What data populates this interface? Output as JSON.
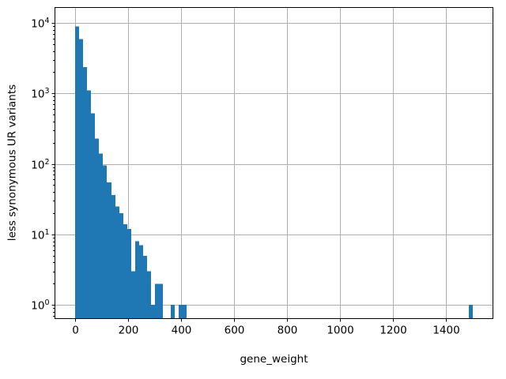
{
  "window": {
    "background": "#ffffff"
  },
  "chart_data": {
    "type": "bar",
    "subtype": "histogram",
    "title": "",
    "xlabel": "gene_weight",
    "ylabel": "less synonymous UR variants",
    "x_scale": "linear",
    "y_scale": "log",
    "xlim": [
      -78.5,
      1578.5
    ],
    "ylim": [
      0.632,
      16750
    ],
    "grid": true,
    "legend_position": "none",
    "bar_color": "#1f77b4",
    "grid_color": "#b0b0b0",
    "spine_color": "#000000",
    "text_color": "#000000",
    "x_ticks": [
      {
        "value": 0,
        "label": "0"
      },
      {
        "value": 200,
        "label": "200"
      },
      {
        "value": 400,
        "label": "400"
      },
      {
        "value": 600,
        "label": "600"
      },
      {
        "value": 800,
        "label": "800"
      },
      {
        "value": 1000,
        "label": "1000"
      },
      {
        "value": 1200,
        "label": "1200"
      },
      {
        "value": 1400,
        "label": "1400"
      }
    ],
    "y_ticks": [
      {
        "value": 1,
        "base": "10",
        "exponent": "0"
      },
      {
        "value": 10,
        "base": "10",
        "exponent": "1"
      },
      {
        "value": 100,
        "base": "10",
        "exponent": "2"
      },
      {
        "value": 1000,
        "base": "10",
        "exponent": "3"
      },
      {
        "value": 10000,
        "base": "10",
        "exponent": "4"
      }
    ],
    "y_minor_ticks_per_decade": [
      2,
      3,
      4,
      5,
      6,
      7,
      8,
      9
    ],
    "bin_width": 15,
    "bins": [
      [
        0,
        15,
        8900
      ],
      [
        15,
        30,
        5900
      ],
      [
        30,
        45,
        2360
      ],
      [
        45,
        60,
        1100
      ],
      [
        60,
        75,
        520
      ],
      [
        75,
        90,
        230
      ],
      [
        90,
        105,
        140
      ],
      [
        105,
        120,
        95
      ],
      [
        120,
        135,
        55
      ],
      [
        135,
        150,
        36
      ],
      [
        150,
        165,
        25
      ],
      [
        165,
        180,
        20
      ],
      [
        180,
        195,
        14
      ],
      [
        195,
        210,
        12
      ],
      [
        210,
        225,
        3
      ],
      [
        225,
        240,
        8
      ],
      [
        240,
        255,
        7
      ],
      [
        255,
        270,
        5
      ],
      [
        270,
        285,
        3
      ],
      [
        285,
        300,
        1
      ],
      [
        300,
        315,
        2
      ],
      [
        315,
        330,
        2
      ],
      [
        360,
        375,
        1
      ],
      [
        390,
        405,
        1
      ],
      [
        405,
        420,
        1
      ],
      [
        1485,
        1500,
        1
      ]
    ]
  }
}
